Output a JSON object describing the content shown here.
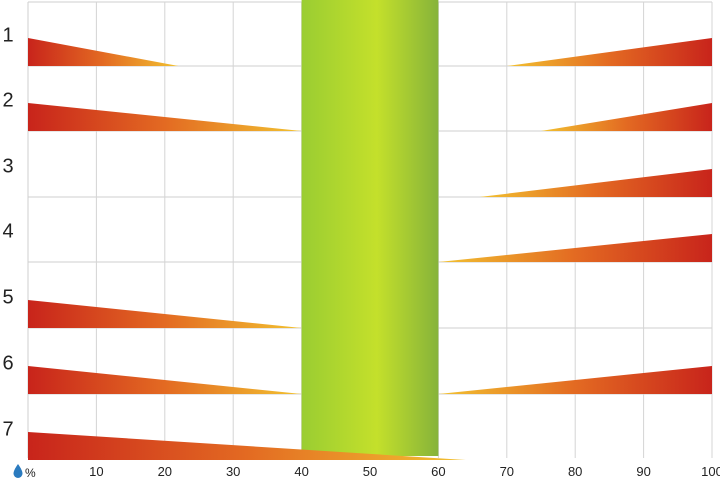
{
  "chart_data": {
    "type": "area",
    "x_axis": {
      "range": [
        0,
        100
      ],
      "ticks": [
        10,
        20,
        30,
        40,
        50,
        60,
        70,
        80,
        90,
        100
      ],
      "unit_label": "%",
      "unit_icon": "water-drop-icon"
    },
    "rows": [
      "1",
      "2",
      "3",
      "4",
      "5",
      "6",
      "7"
    ],
    "optimal_band": {
      "from": 40,
      "to": 60,
      "color": "#9acd32"
    },
    "wedges": [
      {
        "row": "1",
        "side": "left",
        "from": 0,
        "to": 22
      },
      {
        "row": "1",
        "side": "right",
        "from": 70,
        "to": 100
      },
      {
        "row": "2",
        "side": "left",
        "from": 0,
        "to": 40
      },
      {
        "row": "2",
        "side": "right",
        "from": 75,
        "to": 100
      },
      {
        "row": "3",
        "side": "right",
        "from": 66,
        "to": 100
      },
      {
        "row": "4",
        "side": "right",
        "from": 60,
        "to": 100
      },
      {
        "row": "5",
        "side": "left",
        "from": 0,
        "to": 40
      },
      {
        "row": "6",
        "side": "left",
        "from": 0,
        "to": 40
      },
      {
        "row": "6",
        "side": "right",
        "from": 60,
        "to": 100
      },
      {
        "row": "7",
        "side": "left",
        "from": 0,
        "to": 64
      }
    ],
    "colors": {
      "extreme": "#c8241b",
      "mild": "#f2c231",
      "band_light": "#c4e02b",
      "band_dark": "#86b33a"
    },
    "grid": true,
    "legend": "none"
  }
}
